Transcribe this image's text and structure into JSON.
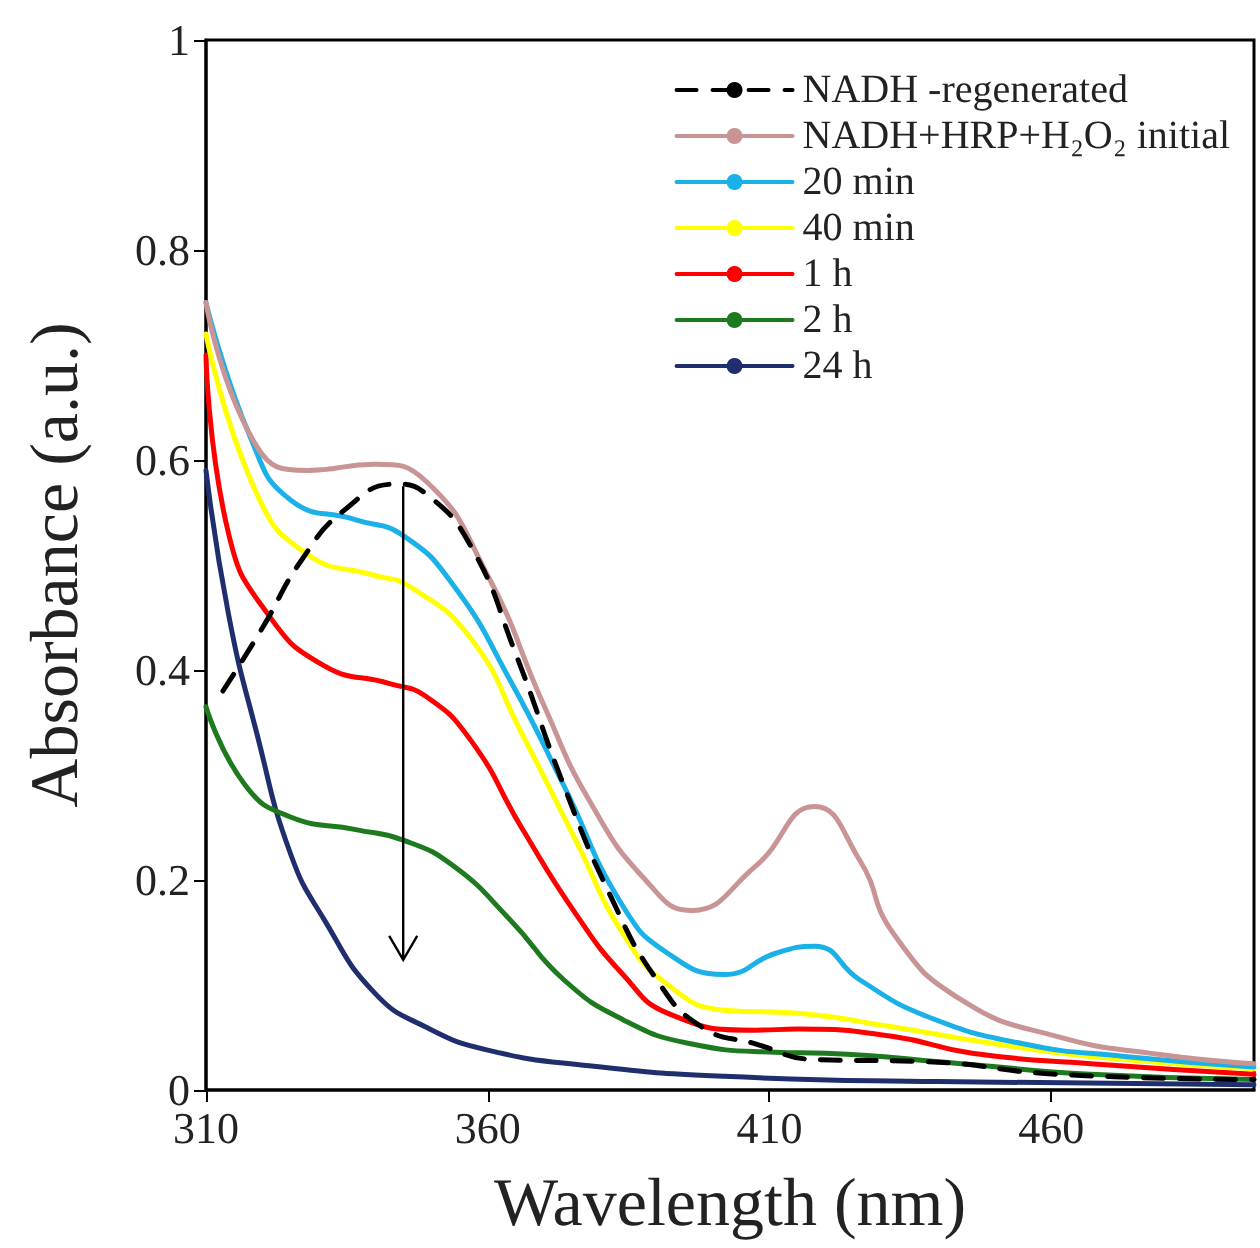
{
  "chart_data": {
    "type": "line",
    "xlabel": "Wavelength (nm)",
    "ylabel": "Absorbance (a.u.)",
    "xlim": [
      310,
      496
    ],
    "xticks": [
      310,
      360,
      410,
      460
    ],
    "ylim": [
      0,
      1
    ],
    "yticks": [
      0,
      0.2,
      0.4,
      0.6,
      0.8,
      1
    ],
    "grid": false,
    "legend": "top right",
    "marker": "none",
    "series": [
      {
        "name": "NADH -regenerated",
        "color": "#000000",
        "line_style": "dashed",
        "x": [
          313,
          320,
          327,
          334.5,
          343.7,
          349,
          357,
          365,
          373.5,
          381.6,
          390,
          398,
          407.5,
          418,
          438,
          461,
          496
        ],
        "values": [
          0.38,
          0.44,
          0.505,
          0.552,
          0.577,
          0.568,
          0.518,
          0.415,
          0.29,
          0.187,
          0.105,
          0.06,
          0.044,
          0.029,
          0.027,
          0.015,
          0.01
        ]
      },
      {
        "name": "NADH+HRP+H₂O₂ initial",
        "color": "#c89494",
        "line_style": "solid",
        "x": [
          310,
          319,
          328,
          340,
          349,
          360,
          370,
          378,
          388,
          396,
          407.5,
          418,
          426,
          432,
          444,
          461,
          479,
          496
        ],
        "values": [
          0.75,
          0.613,
          0.59,
          0.596,
          0.58,
          0.49,
          0.366,
          0.276,
          0.2,
          0.171,
          0.213,
          0.27,
          0.219,
          0.149,
          0.086,
          0.051,
          0.034,
          0.025
        ]
      },
      {
        "name": "20 min",
        "color": "#1ab0e8",
        "line_style": "solid",
        "x": [
          310,
          318,
          325,
          336.6,
          345,
          354,
          364,
          373.5,
          384,
          392,
          402,
          411,
          418,
          426,
          438,
          455,
          473,
          496
        ],
        "values": [
          0.75,
          0.62,
          0.562,
          0.543,
          0.528,
          0.48,
          0.39,
          0.29,
          0.175,
          0.13,
          0.11,
          0.13,
          0.137,
          0.105,
          0.07,
          0.044,
          0.032,
          0.022
        ]
      },
      {
        "name": "40 min",
        "color": "#ffff00",
        "line_style": "solid",
        "x": [
          310,
          319,
          328,
          340,
          346,
          357,
          366,
          375.6,
          384,
          392,
          402,
          415,
          432,
          450,
          467,
          496
        ],
        "values": [
          0.72,
          0.568,
          0.51,
          0.49,
          0.48,
          0.43,
          0.34,
          0.238,
          0.149,
          0.1,
          0.076,
          0.073,
          0.06,
          0.044,
          0.032,
          0.02
        ]
      },
      {
        "name": "1 h",
        "color": "#ff0000",
        "line_style": "solid",
        "x": [
          310,
          314,
          321,
          331,
          342.6,
          349,
          357,
          366,
          375.6,
          384,
          392,
          407.5,
          415,
          432,
          446,
          467,
          496
        ],
        "values": [
          0.7,
          0.53,
          0.453,
          0.404,
          0.387,
          0.375,
          0.333,
          0.25,
          0.168,
          0.11,
          0.073,
          0.057,
          0.058,
          0.051,
          0.035,
          0.025,
          0.015
        ]
      },
      {
        "name": "2 h",
        "color": "#1e7a1e",
        "line_style": "solid",
        "x": [
          310,
          317,
          325,
          336.6,
          345,
          354,
          364,
          373.5,
          384,
          396,
          411,
          420,
          444,
          467,
          496
        ],
        "values": [
          0.365,
          0.29,
          0.26,
          0.248,
          0.238,
          0.213,
          0.162,
          0.105,
          0.067,
          0.044,
          0.036,
          0.035,
          0.025,
          0.015,
          0.01
        ]
      },
      {
        "name": "24 h",
        "color": "#1f2f6e",
        "line_style": "solid",
        "x": [
          310,
          314,
          319,
          325,
          331,
          340,
          349,
          360,
          378,
          402,
          440,
          496
        ],
        "values": [
          0.59,
          0.453,
          0.34,
          0.225,
          0.162,
          0.092,
          0.06,
          0.038,
          0.023,
          0.013,
          0.008,
          0.005
        ]
      }
    ]
  }
}
